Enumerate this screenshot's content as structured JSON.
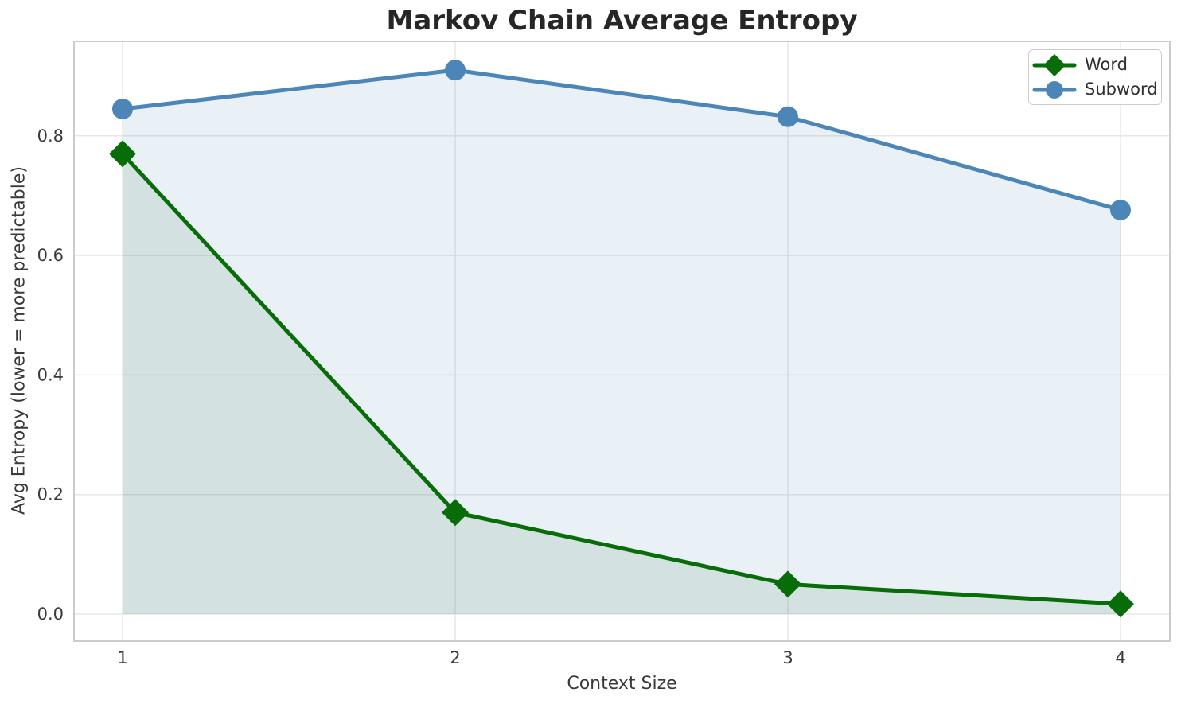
{
  "figure": {
    "title": "Markov Chain Average Entropy",
    "xlabel": "Context Size",
    "ylabel": "Avg Entropy (lower = more predictable)"
  },
  "chart_data": {
    "type": "line",
    "title": "Markov Chain Average Entropy",
    "xlabel": "Context Size",
    "ylabel": "Avg Entropy (lower = more predictable)",
    "x": [
      1,
      2,
      3,
      4
    ],
    "x_tick_labels": [
      "1",
      "2",
      "3",
      "4"
    ],
    "y_ticks": [
      0.0,
      0.2,
      0.4,
      0.6,
      0.8
    ],
    "y_tick_labels": [
      "0.0",
      "0.2",
      "0.4",
      "0.6",
      "0.8"
    ],
    "xlim": [
      0.85,
      4.15
    ],
    "ylim": [
      -0.045,
      0.958
    ],
    "grid": true,
    "fill_to_zero": true,
    "legend_position": "upper right",
    "series": [
      {
        "name": "Word",
        "marker": "diamond",
        "color": "#086d08",
        "fill_opacity": 0.1,
        "values": [
          0.77,
          0.17,
          0.05,
          0.017
        ]
      },
      {
        "name": "Subword",
        "marker": "circle",
        "color": "#4c86b8",
        "fill_opacity": 0.12,
        "values": [
          0.845,
          0.91,
          0.832,
          0.676
        ]
      }
    ]
  },
  "styles": {
    "grid_color": "#e7e7e7",
    "spine_color": "#cccccc",
    "tick_text_color": "#3a3a3a",
    "title_color": "#262626"
  }
}
